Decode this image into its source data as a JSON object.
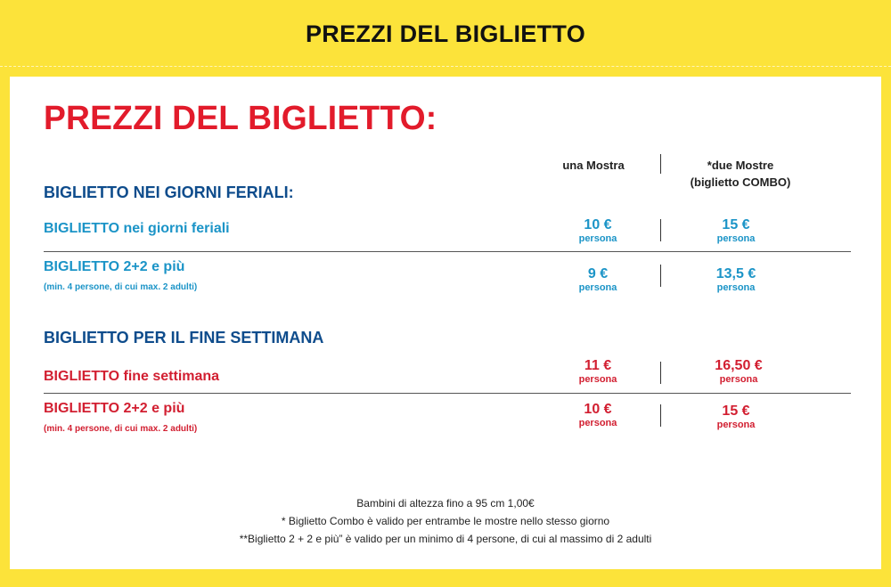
{
  "header": {
    "title": "PREZZI DEL BIGLIETTO"
  },
  "card": {
    "title": "PREZZI DEL BIGLIETTO:",
    "columns": {
      "one": "una Mostra",
      "two_line1": "*due Mostre",
      "two_line2": "(biglietto COMBO)"
    },
    "weekday": {
      "section": "BIGLIETTO NEI GIORNI FERIALI:",
      "rows": [
        {
          "title": "BIGLIETTO nei giorni feriali",
          "sub": "",
          "one": "10 €",
          "two": "15 €",
          "unit": "persona"
        },
        {
          "title": "BIGLIETTO 2+2 e più",
          "sub": "(min. 4 persone, di cui max. 2 adulti)",
          "one": "9 €",
          "two": "13,5 €",
          "unit": "persona"
        }
      ]
    },
    "weekend": {
      "section": "BIGLIETTO PER IL FINE SETTIMANA",
      "rows": [
        {
          "title": "BIGLIETTO fine settimana",
          "sub": "",
          "one": "11 €",
          "two": "16,50 €",
          "unit": "persona"
        },
        {
          "title": "BIGLIETTO 2+2 e più",
          "sub": "(min. 4 persone, di cui max. 2 adulti)",
          "one": "10 €",
          "two": "15 €",
          "unit": "persona"
        }
      ]
    },
    "notes": [
      "Bambini di altezza fino a 95 cm 1,00€",
      "* Biglietto Combo è valido per entrambe le mostre nello stesso giorno",
      "**Biglietto 2 + 2 e più” è valido per un minimo di 4 persone, di cui al massimo di 2 adulti"
    ]
  },
  "colors": {
    "yellow": "#FCE33A",
    "red": "#E21B2B",
    "blue": "#1B94C7",
    "navy": "#0E4C8C"
  }
}
